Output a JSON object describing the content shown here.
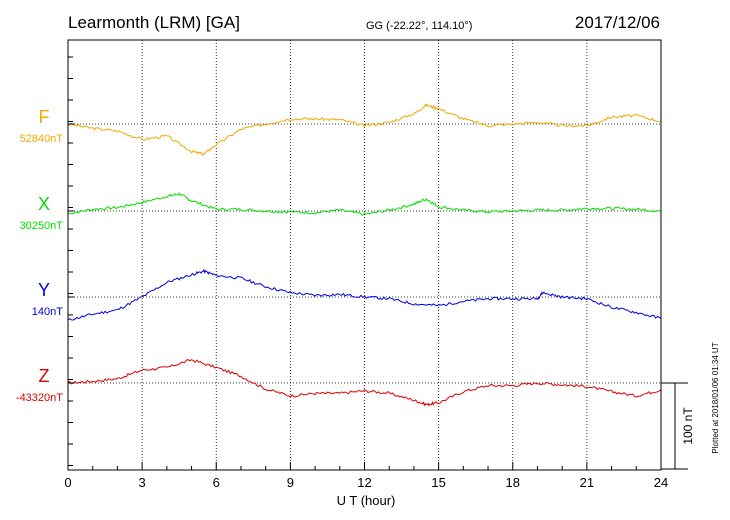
{
  "chart_data": {
    "type": "line",
    "station": "Learmonth (LRM)  [GA]",
    "coords": "GG (-22.22°, 114.10°)",
    "date": "2017/12/06",
    "xlabel": "U T (hour)",
    "xlim": [
      0,
      24
    ],
    "xticks": [
      "0",
      "3",
      "6",
      "9",
      "12",
      "15",
      "18",
      "21",
      "24"
    ],
    "scale_bar": {
      "label": "100 nT",
      "value": 100
    },
    "plotted_note": "Plotted at 2018/01/06 01:34 UT",
    "grid": true,
    "series": [
      {
        "name": "F",
        "baseline_label": "52840nT",
        "baseline": 52840,
        "color": "#f0a800",
        "x": [
          0,
          1,
          2,
          3,
          4,
          5,
          5.5,
          6,
          7,
          8,
          9,
          10,
          11,
          12,
          13,
          14,
          14.5,
          15,
          16,
          17,
          18,
          19,
          20,
          21,
          22,
          23,
          24
        ],
        "values": [
          52840,
          52835,
          52832,
          52822,
          52826,
          52808,
          52805,
          52816,
          52834,
          52840,
          52846,
          52846,
          52845,
          52838,
          52842,
          52852,
          52862,
          52858,
          52846,
          52838,
          52840,
          52842,
          52838,
          52838,
          52848,
          52850,
          52843
        ]
      },
      {
        "name": "X",
        "baseline_label": "30250nT",
        "baseline": 30250,
        "color": "#00e000",
        "x": [
          0,
          1,
          2,
          3,
          4,
          4.5,
          5,
          6,
          7,
          8,
          9,
          10,
          11,
          12,
          13,
          14,
          14.5,
          15,
          16,
          17,
          18,
          19,
          20,
          21,
          22,
          23,
          24
        ],
        "values": [
          30247,
          30252,
          30254,
          30260,
          30267,
          30270,
          30262,
          30252,
          30252,
          30250,
          30249,
          30248,
          30251,
          30246,
          30251,
          30258,
          30264,
          30255,
          30251,
          30249,
          30250,
          30251,
          30251,
          30253,
          30253,
          30252,
          30250
        ]
      },
      {
        "name": "Y",
        "baseline_label": "140nT",
        "baseline": 140,
        "color": "#0000e0",
        "x": [
          0,
          1,
          2,
          3,
          4,
          5,
          5.5,
          6,
          7,
          8,
          9,
          10,
          11,
          12,
          13,
          14,
          15,
          16,
          17,
          18,
          19,
          19.2,
          20,
          21,
          22,
          23,
          24
        ],
        "values": [
          113,
          120,
          125,
          140,
          157,
          166,
          170,
          165,
          162,
          152,
          145,
          142,
          143,
          140,
          138,
          132,
          130,
          135,
          138,
          138,
          138,
          145,
          140,
          138,
          128,
          122,
          115
        ]
      },
      {
        "name": "Z",
        "baseline_label": "-43320nT",
        "baseline": -43320,
        "color": "#e00000",
        "x": [
          0,
          1,
          2,
          3,
          4,
          5,
          6,
          7,
          8,
          9,
          10,
          11,
          12,
          13,
          14,
          14.5,
          15,
          16,
          17,
          18,
          19,
          20,
          21,
          22,
          23,
          24
        ],
        "values": [
          -43320,
          -43318,
          -43315,
          -43305,
          -43302,
          -43293,
          -43302,
          -43312,
          -43327,
          -43335,
          -43332,
          -43332,
          -43329,
          -43332,
          -43340,
          -43345,
          -43343,
          -43330,
          -43323,
          -43323,
          -43320,
          -43322,
          -43324,
          -43330,
          -43335,
          -43328
        ]
      }
    ]
  }
}
